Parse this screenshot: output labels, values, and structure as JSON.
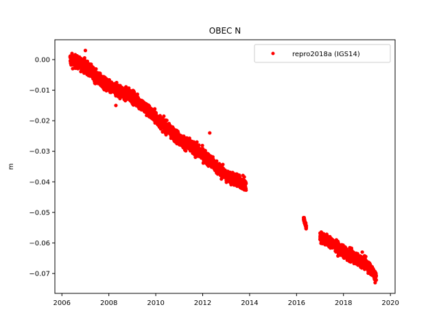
{
  "chart_data": {
    "type": "scatter",
    "title": "OBEC N",
    "xlabel": "",
    "ylabel": "m",
    "xlim": [
      2005.7,
      2020.2
    ],
    "ylim": [
      -0.0765,
      0.0065
    ],
    "xticks": [
      2006,
      2008,
      2010,
      2012,
      2014,
      2016,
      2018,
      2020
    ],
    "yticks": [
      0.0,
      -0.01,
      -0.02,
      -0.03,
      -0.04,
      -0.05,
      -0.06,
      -0.07
    ],
    "xtick_labels": [
      "2006",
      "2008",
      "2010",
      "2012",
      "2014",
      "2016",
      "2018",
      "2020"
    ],
    "ytick_labels": [
      "0.00",
      "−0.01",
      "−0.02",
      "−0.03",
      "−0.04",
      "−0.05",
      "−0.06",
      "−0.07"
    ],
    "grid": false,
    "legend_position": "top-right",
    "series": [
      {
        "name": "repro2018a (IGS14)",
        "color": "#ff0000",
        "marker": "circle",
        "segments": [
          {
            "x_start": 2006.35,
            "x_end": 2013.85,
            "trend": [
              [
                2006.35,
                0.0
              ],
              [
                2007.0,
                -0.002
              ],
              [
                2007.5,
                -0.006
              ],
              [
                2008.0,
                -0.009
              ],
              [
                2009.0,
                -0.012
              ],
              [
                2010.0,
                -0.019
              ],
              [
                2011.0,
                -0.026
              ],
              [
                2012.0,
                -0.031
              ],
              [
                2013.0,
                -0.038
              ],
              [
                2013.85,
                -0.041
              ]
            ],
            "noise": 0.0018
          },
          {
            "x_start": 2016.3,
            "x_end": 2016.42,
            "trend": [
              [
                2016.3,
                -0.052
              ],
              [
                2016.42,
                -0.055
              ]
            ],
            "noise": 0.0008
          },
          {
            "x_start": 2017.0,
            "x_end": 2019.4,
            "trend": [
              [
                2017.0,
                -0.058
              ],
              [
                2017.5,
                -0.06
              ],
              [
                2018.0,
                -0.063
              ],
              [
                2018.5,
                -0.065
              ],
              [
                2019.0,
                -0.067
              ],
              [
                2019.4,
                -0.071
              ]
            ],
            "noise": 0.0016
          }
        ],
        "outliers": [
          [
            2007.0,
            0.003
          ],
          [
            2012.3,
            -0.024
          ],
          [
            2018.8,
            -0.063
          ],
          [
            2019.35,
            -0.073
          ],
          [
            2008.3,
            -0.015
          ]
        ]
      }
    ]
  }
}
